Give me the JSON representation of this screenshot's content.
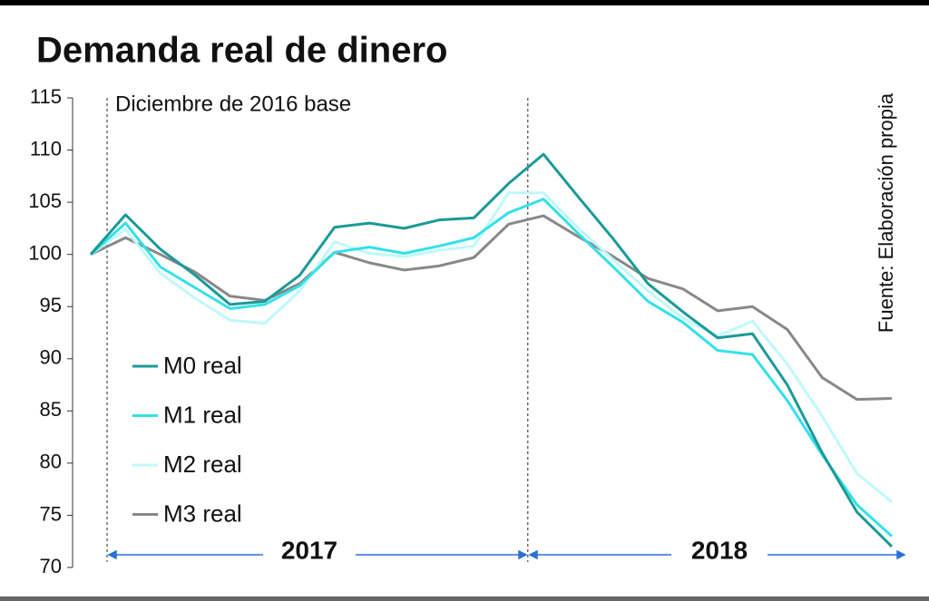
{
  "chart_data": {
    "type": "line",
    "title": "Demanda real de dinero",
    "annotations": [
      "Diciembre de 2016 base",
      "2017",
      "2018",
      "Fuente: Elaboración propia"
    ],
    "categories": [
      null,
      null,
      null,
      null,
      null,
      null,
      null,
      null,
      null,
      null,
      null,
      null,
      null,
      null,
      null,
      null,
      null,
      null,
      null,
      null,
      null,
      null,
      null,
      null
    ],
    "series": [
      {
        "name": "M0 real",
        "color": "#1a9a96",
        "values": [
          100,
          103.8,
          100.5,
          98,
          95.2,
          95.5,
          98,
          102.6,
          103,
          102.5,
          103.3,
          103.5,
          106.8,
          109.6,
          105.5,
          101.5,
          97.2,
          94.5,
          92,
          92.4,
          87.5,
          81,
          75.3,
          72
        ]
      },
      {
        "name": "M1 real",
        "color": "#33e0e8",
        "values": [
          100,
          103,
          98.8,
          96.8,
          94.8,
          95.2,
          97,
          100.2,
          100.7,
          100.1,
          100.8,
          101.6,
          104,
          105.3,
          102,
          98.8,
          95.5,
          93.5,
          90.8,
          90.4,
          86,
          80.8,
          76,
          73
        ]
      },
      {
        "name": "M2 real",
        "color": "#c0f8fa",
        "values": [
          100,
          102.4,
          98.2,
          95.8,
          93.7,
          93.4,
          96.5,
          101.2,
          100.1,
          99.8,
          100.4,
          100.8,
          105.9,
          105.9,
          102.5,
          99.5,
          96.5,
          93.9,
          92.2,
          93.6,
          89.5,
          84.5,
          79,
          76.3
        ]
      },
      {
        "name": "M3 real",
        "color": "#888888",
        "values": [
          100,
          101.6,
          100,
          98.3,
          96,
          95.6,
          97.2,
          100.2,
          99.2,
          98.5,
          98.9,
          99.7,
          102.9,
          103.7,
          101.7,
          99.8,
          97.7,
          96.7,
          94.6,
          95,
          92.8,
          88.2,
          86.1,
          86.2
        ]
      }
    ],
    "ylim": [
      70,
      115
    ],
    "yticks": [
      70,
      75,
      80,
      85,
      90,
      95,
      100,
      105,
      110,
      115
    ]
  }
}
